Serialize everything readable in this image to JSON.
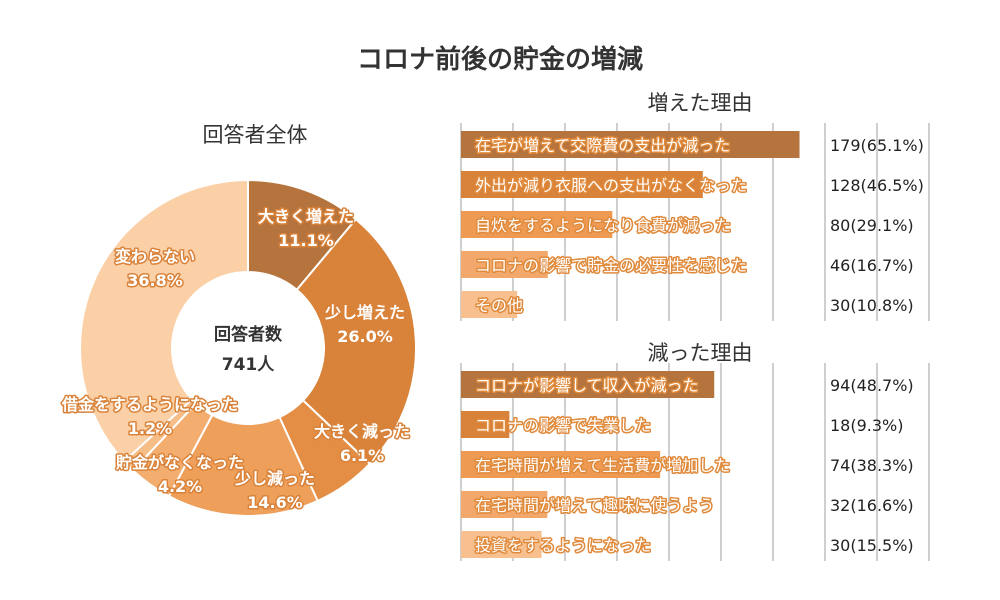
{
  "title": "コロナ前後の貯金の増減",
  "chart_data": [
    {
      "type": "pie",
      "title": "回答者全体",
      "center_label": [
        "回答者数",
        "741人"
      ],
      "slices": [
        {
          "label": "大きく増えた",
          "pct_label": "11.1%",
          "value": 11.1,
          "color": "#b5743d"
        },
        {
          "label": "少し増えた",
          "pct_label": "26.0%",
          "value": 26.0,
          "color": "#d9823a"
        },
        {
          "label": "大きく減った",
          "pct_label": "6.1%",
          "value": 6.1,
          "color": "#e48d44"
        },
        {
          "label": "少し減った",
          "pct_label": "14.6%",
          "value": 14.6,
          "color": "#ee9f5a"
        },
        {
          "label": "貯金がなくなった",
          "pct_label": "4.2%",
          "value": 4.2,
          "color": "#f3ae6f"
        },
        {
          "label": "借金をするようになった",
          "pct_label": "1.2%",
          "value": 1.2,
          "color": "#f6bd87"
        },
        {
          "label": "変わらない",
          "pct_label": "36.8%",
          "value": 36.8,
          "color": "#fbd0a6"
        }
      ]
    },
    {
      "type": "bar",
      "orientation": "horizontal",
      "title": "増えた理由",
      "xlim": [
        0,
        100
      ],
      "bars": [
        {
          "label": "在宅が増えて交際費の支出が減った",
          "value": 65.1,
          "value_label": "179(65.1%)",
          "color": "#b5743d"
        },
        {
          "label": "外出が減り衣服への支出がなくなった",
          "value": 46.5,
          "value_label": "128(46.5%)",
          "color": "#d9823a"
        },
        {
          "label": "自炊をするようになり食費が減った",
          "value": 29.1,
          "value_label": "80(29.1%)",
          "color": "#ee9a52"
        },
        {
          "label": "コロナの影響で貯金の必要性を感じた",
          "value": 16.7,
          "value_label": "46(16.7%)",
          "color": "#f2a86a"
        },
        {
          "label": "その他",
          "value": 10.8,
          "value_label": "30(10.8%)",
          "color": "#f7c08e"
        }
      ]
    },
    {
      "type": "bar",
      "orientation": "horizontal",
      "title": "減った理由",
      "xlim": [
        0,
        100
      ],
      "bars": [
        {
          "label": "コロナが影響して収入が減った",
          "value": 48.7,
          "value_label": "94(48.7%)",
          "color": "#b5743d"
        },
        {
          "label": "コロナの影響で失業した",
          "value": 9.3,
          "value_label": "18(9.3%)",
          "color": "#d9823a"
        },
        {
          "label": "在宅時間が増えて生活費が増加した",
          "value": 38.3,
          "value_label": "74(38.3%)",
          "color": "#ee9a52"
        },
        {
          "label": "在宅時間が増えて趣味に使うよう",
          "value": 16.6,
          "value_label": "32(16.6%)",
          "color": "#f2a86a"
        },
        {
          "label": "投資をするようになった",
          "value": 15.5,
          "value_label": "30(15.5%)",
          "color": "#f7c08e"
        }
      ]
    }
  ]
}
